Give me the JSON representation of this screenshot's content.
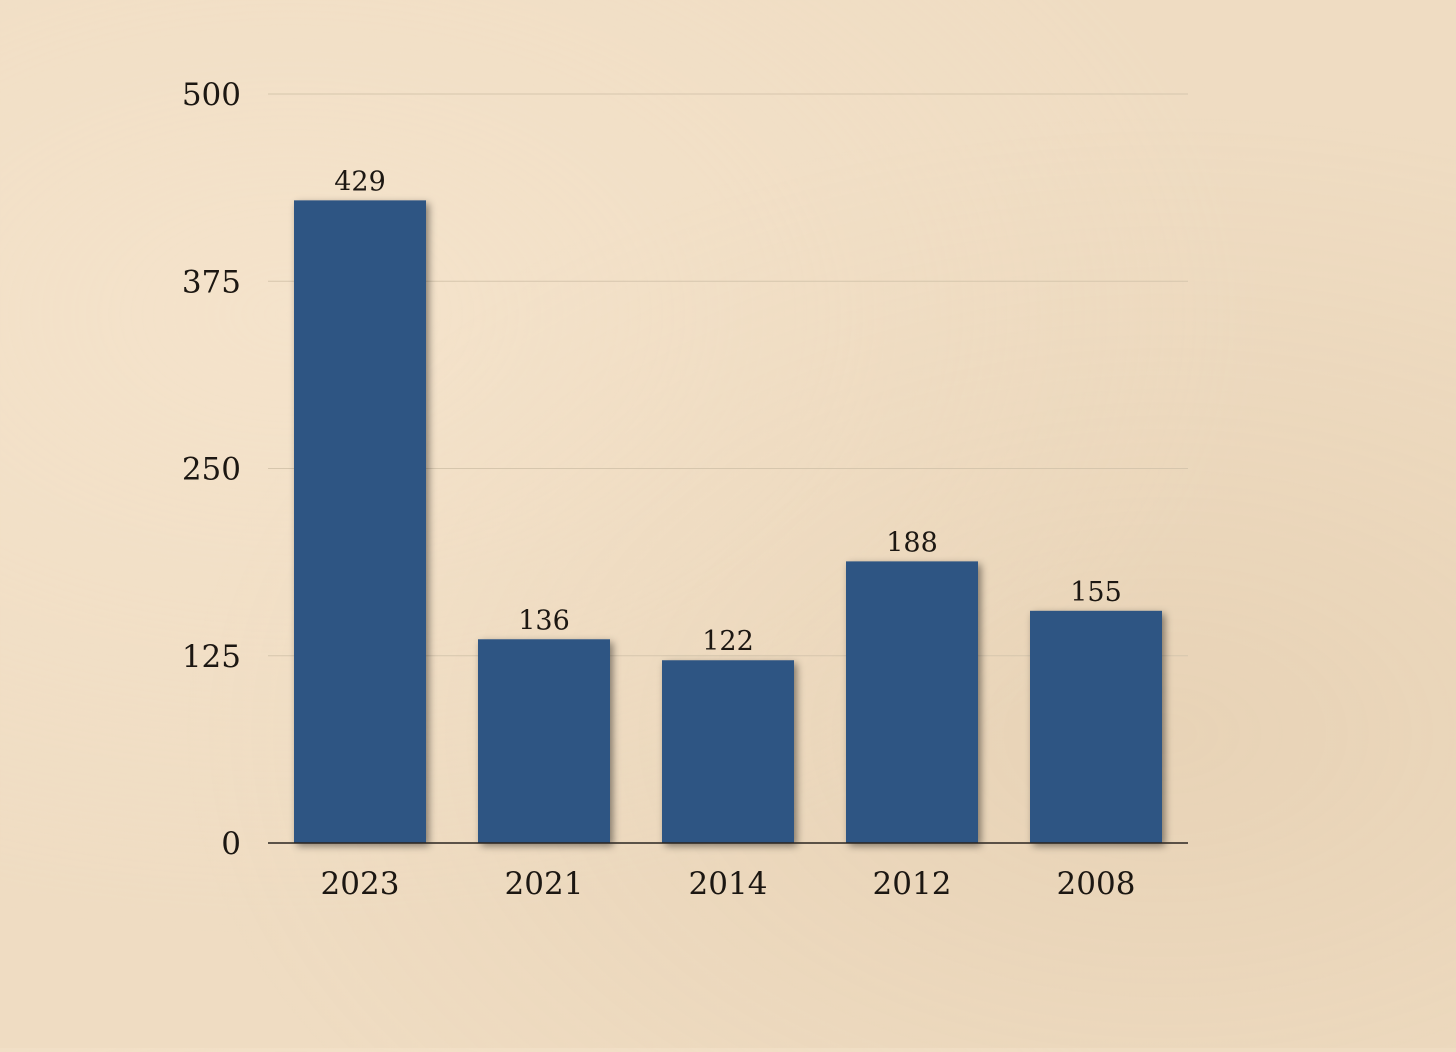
{
  "chart_data": {
    "type": "bar",
    "title": "",
    "xlabel": "",
    "ylabel": "",
    "categories": [
      "2023",
      "2021",
      "2014",
      "2012",
      "2008"
    ],
    "values": [
      429,
      136,
      122,
      188,
      155
    ],
    "value_labels": [
      "429",
      "136",
      "122",
      "188",
      "155"
    ],
    "yticks": [
      0,
      125,
      250,
      375,
      500
    ],
    "ytick_labels": [
      "0",
      "125",
      "250",
      "375",
      "500"
    ],
    "ylim": [
      0,
      500
    ],
    "grid": true,
    "legend": "none",
    "colors": {
      "bar": "#2f5483",
      "gridline": "#d6c6ad",
      "axis": "#2a2520",
      "text": "#1c1712"
    }
  }
}
